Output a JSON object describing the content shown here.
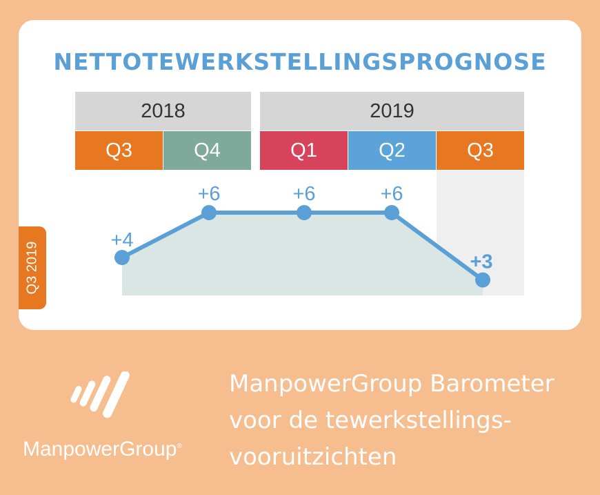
{
  "header": {
    "title": "NETTOTEWERKSTELLINGSPROGNOSE",
    "years": [
      {
        "label": "2018"
      },
      {
        "label": "2019"
      }
    ],
    "quarters": [
      {
        "label": "Q3",
        "color": "#E87722"
      },
      {
        "label": "Q4",
        "color": "#7FA99A"
      },
      {
        "label": "Q1",
        "color": "#D7435A"
      },
      {
        "label": "Q2",
        "color": "#5BA3D9"
      },
      {
        "label": "Q3",
        "color": "#E87722"
      }
    ]
  },
  "side_tab": {
    "label": "Q3 2019",
    "color": "#E87722"
  },
  "chart_data": {
    "type": "line",
    "categories": [
      "Q3 2018",
      "Q4 2018",
      "Q1 2019",
      "Q2 2019",
      "Q3 2019"
    ],
    "values": [
      4,
      6,
      6,
      6,
      3
    ],
    "data_labels": [
      "+4",
      "+6",
      "+6",
      "+6",
      "+3"
    ],
    "highlight_index": 4,
    "line_color": "#5AA0D6",
    "area_color": "#D9E6E3",
    "highlight_column_color": "#EFEFEF"
  },
  "footer": {
    "brand": "ManpowerGroup",
    "registered_mark": "®",
    "tagline_lines": [
      "ManpowerGroup Barometer",
      "voor de tewerkstellings-",
      "vooruitzichten"
    ]
  }
}
